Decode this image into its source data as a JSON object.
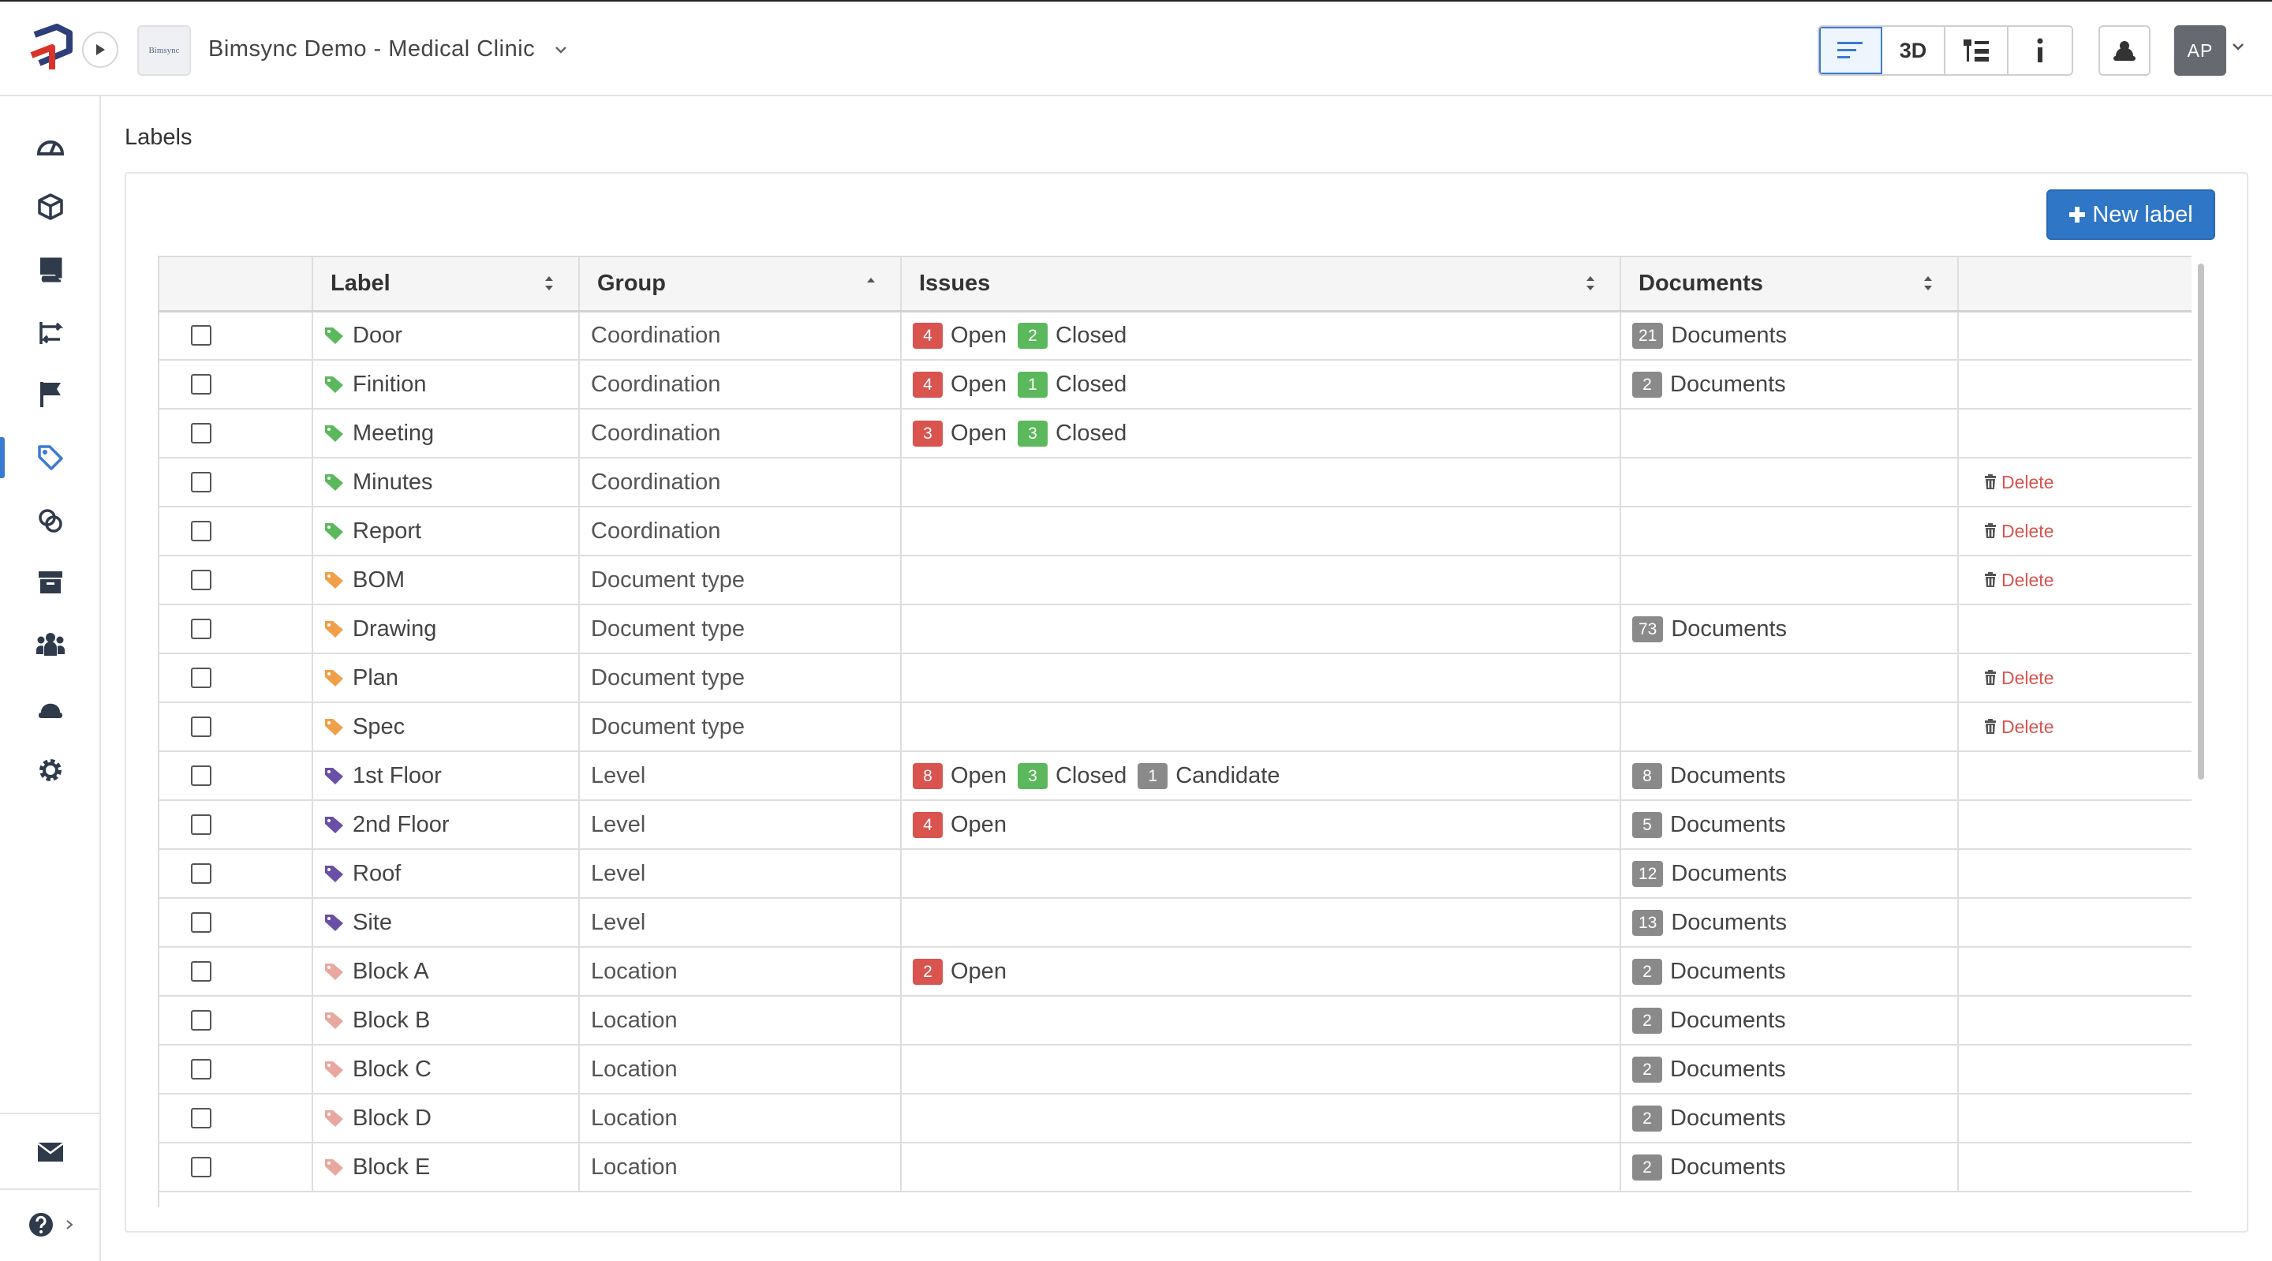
{
  "header": {
    "project_thumb_text": "Bimsync",
    "project_title": "Bimsync Demo - Medical Clinic",
    "view_buttons": [
      "list-view",
      "3D",
      "tree-view",
      "info"
    ],
    "view_3d_label": "3D",
    "avatar_initials": "AP"
  },
  "sidebar": {
    "items": [
      "dashboard-icon",
      "models-icon",
      "storage-icon",
      "workflow-icon",
      "issues-flag-icon",
      "labels-tag-icon",
      "links-icon",
      "archive-icon",
      "team-icon",
      "users-icon",
      "settings-icon"
    ],
    "active": "labels-tag-icon",
    "bottom": [
      "mail-icon",
      "help-icon"
    ]
  },
  "page": {
    "title": "Labels",
    "new_label_button": "New label"
  },
  "table": {
    "headers": {
      "label": "Label",
      "group": "Group",
      "issues": "Issues",
      "documents": "Documents"
    },
    "delete_label": "Delete",
    "status_open": "Open",
    "status_closed": "Closed",
    "status_candidate": "Candidate",
    "documents_suffix": "Documents",
    "rows": [
      {
        "label": "Door",
        "group": "Coordination",
        "color": "#5cb85c",
        "open": "4",
        "closed": "2",
        "candidate": "",
        "documents": "21",
        "deletable": false
      },
      {
        "label": "Finition",
        "group": "Coordination",
        "color": "#5cb85c",
        "open": "4",
        "closed": "1",
        "candidate": "",
        "documents": "2",
        "deletable": false
      },
      {
        "label": "Meeting",
        "group": "Coordination",
        "color": "#5cb85c",
        "open": "3",
        "closed": "3",
        "candidate": "",
        "documents": "",
        "deletable": false
      },
      {
        "label": "Minutes",
        "group": "Coordination",
        "color": "#5cb85c",
        "open": "",
        "closed": "",
        "candidate": "",
        "documents": "",
        "deletable": true
      },
      {
        "label": "Report",
        "group": "Coordination",
        "color": "#5cb85c",
        "open": "",
        "closed": "",
        "candidate": "",
        "documents": "",
        "deletable": true
      },
      {
        "label": "BOM",
        "group": "Document type",
        "color": "#f0a04b",
        "open": "",
        "closed": "",
        "candidate": "",
        "documents": "",
        "deletable": true
      },
      {
        "label": "Drawing",
        "group": "Document type",
        "color": "#f0a04b",
        "open": "",
        "closed": "",
        "candidate": "",
        "documents": "73",
        "deletable": false
      },
      {
        "label": "Plan",
        "group": "Document type",
        "color": "#f0a04b",
        "open": "",
        "closed": "",
        "candidate": "",
        "documents": "",
        "deletable": true
      },
      {
        "label": "Spec",
        "group": "Document type",
        "color": "#f0a04b",
        "open": "",
        "closed": "",
        "candidate": "",
        "documents": "",
        "deletable": true
      },
      {
        "label": "1st Floor",
        "group": "Level",
        "color": "#6a4fa6",
        "open": "8",
        "closed": "3",
        "candidate": "1",
        "documents": "8",
        "deletable": false
      },
      {
        "label": "2nd Floor",
        "group": "Level",
        "color": "#6a4fa6",
        "open": "4",
        "closed": "",
        "candidate": "",
        "documents": "5",
        "deletable": false
      },
      {
        "label": "Roof",
        "group": "Level",
        "color": "#6a4fa6",
        "open": "",
        "closed": "",
        "candidate": "",
        "documents": "12",
        "deletable": false
      },
      {
        "label": "Site",
        "group": "Level",
        "color": "#6a4fa6",
        "open": "",
        "closed": "",
        "candidate": "",
        "documents": "13",
        "deletable": false
      },
      {
        "label": "Block A",
        "group": "Location",
        "color": "#e8a8a0",
        "open": "2",
        "closed": "",
        "candidate": "",
        "documents": "2",
        "deletable": false
      },
      {
        "label": "Block B",
        "group": "Location",
        "color": "#e8a8a0",
        "open": "",
        "closed": "",
        "candidate": "",
        "documents": "2",
        "deletable": false
      },
      {
        "label": "Block C",
        "group": "Location",
        "color": "#e8a8a0",
        "open": "",
        "closed": "",
        "candidate": "",
        "documents": "2",
        "deletable": false
      },
      {
        "label": "Block D",
        "group": "Location",
        "color": "#e8a8a0",
        "open": "",
        "closed": "",
        "candidate": "",
        "documents": "2",
        "deletable": false
      },
      {
        "label": "Block E",
        "group": "Location",
        "color": "#e8a8a0",
        "open": "",
        "closed": "",
        "candidate": "",
        "documents": "2",
        "deletable": false
      }
    ]
  }
}
